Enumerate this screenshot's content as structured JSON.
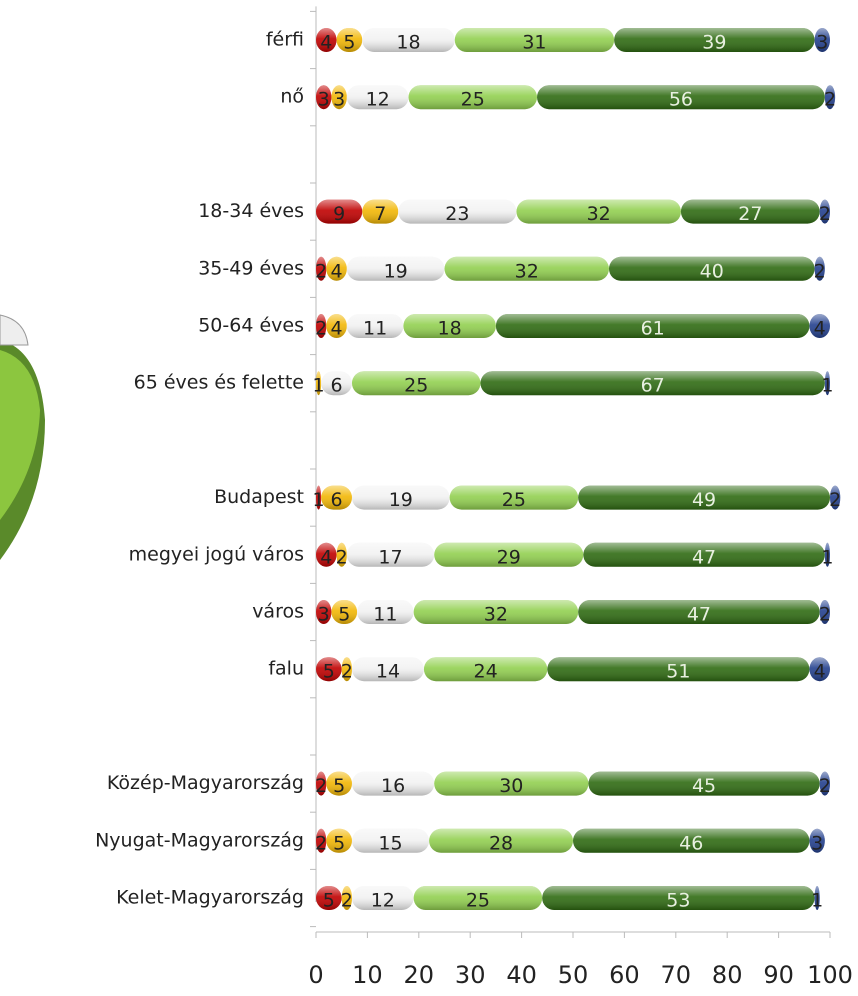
{
  "chart_data": {
    "type": "stacked-bar",
    "orientation": "horizontal",
    "categories": [
      "férfi",
      "nő",
      null,
      "18-34 éves",
      "35-49 éves",
      "50-64 éves",
      "65 éves és felette",
      null,
      "Budapest",
      "megyei jogú város",
      "város",
      "falu",
      null,
      "Közép-Magyarország",
      "Nyugat-Magyarország",
      "Kelet-Magyarország"
    ],
    "series": [
      {
        "color": "#c00000",
        "values": [
          4,
          3,
          null,
          9,
          2,
          2,
          null,
          null,
          1,
          4,
          3,
          5,
          null,
          2,
          2,
          5
        ]
      },
      {
        "color": "#f2b705",
        "values": [
          5,
          3,
          null,
          7,
          4,
          4,
          1,
          null,
          6,
          2,
          5,
          2,
          null,
          5,
          5,
          2
        ]
      },
      {
        "color": "#f2f2f2",
        "values": [
          18,
          12,
          null,
          23,
          19,
          11,
          6,
          null,
          19,
          17,
          11,
          14,
          null,
          16,
          15,
          12
        ]
      },
      {
        "color": "#92d050",
        "values": [
          31,
          25,
          null,
          32,
          32,
          18,
          25,
          null,
          25,
          29,
          32,
          24,
          null,
          30,
          28,
          25
        ]
      },
      {
        "color": "#2f6b12",
        "values": [
          39,
          56,
          null,
          27,
          40,
          61,
          67,
          null,
          49,
          47,
          47,
          51,
          null,
          45,
          46,
          53
        ]
      },
      {
        "color": "#23408e",
        "values": [
          3,
          2,
          null,
          2,
          2,
          4,
          1,
          null,
          2,
          1,
          2,
          4,
          null,
          2,
          3,
          1
        ]
      }
    ],
    "xlim": [
      0,
      100
    ],
    "xticks": [
      0,
      10,
      20,
      30,
      40,
      50,
      60,
      70,
      80,
      90,
      100
    ]
  }
}
